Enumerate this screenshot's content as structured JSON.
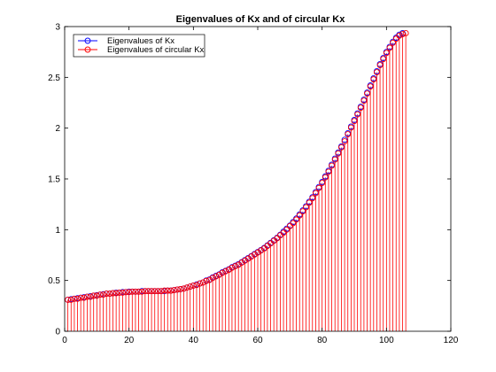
{
  "chart_data": {
    "type": "stem",
    "title": "Eigenvalues of Kx and of circular Kx",
    "xlabel": "",
    "ylabel": "",
    "xlim": [
      0,
      120
    ],
    "ylim": [
      0,
      3
    ],
    "xticks": [
      0,
      20,
      40,
      60,
      80,
      100,
      120
    ],
    "yticks": [
      0,
      0.5,
      1,
      1.5,
      2,
      2.5,
      3
    ],
    "xtick_labels": [
      "0",
      "20",
      "40",
      "60",
      "80",
      "100",
      "120"
    ],
    "ytick_labels": [
      "0",
      "0.5",
      "1",
      "1.5",
      "2",
      "2.5",
      "3"
    ],
    "grid": false,
    "legend_position": "top-left",
    "series": [
      {
        "name": "Eigenvalues of Kx",
        "color": "#0000ff",
        "marker": "circle",
        "stems": false,
        "x": [
          1,
          2,
          3,
          4,
          5,
          6,
          7,
          8,
          9,
          10,
          11,
          12,
          13,
          14,
          15,
          16,
          17,
          18,
          19,
          20,
          21,
          22,
          23,
          24,
          25,
          26,
          27,
          28,
          29,
          30,
          31,
          32,
          33,
          34,
          35,
          36,
          37,
          38,
          39,
          40,
          41,
          42,
          43,
          44,
          45,
          46,
          47,
          48,
          49,
          50,
          51,
          52,
          53,
          54,
          55,
          56,
          57,
          58,
          59,
          60,
          61,
          62,
          63,
          64,
          65,
          66,
          67,
          68,
          69,
          70,
          71,
          72,
          73,
          74,
          75,
          76,
          77,
          78,
          79,
          80,
          81,
          82,
          83,
          84,
          85,
          86,
          87,
          88,
          89,
          90,
          91,
          92,
          93,
          94,
          95,
          96,
          97,
          98,
          99,
          100,
          101,
          102,
          103,
          104,
          105
        ],
        "values": [
          0.31,
          0.315,
          0.32,
          0.325,
          0.33,
          0.335,
          0.34,
          0.345,
          0.35,
          0.355,
          0.36,
          0.365,
          0.37,
          0.37,
          0.375,
          0.38,
          0.38,
          0.385,
          0.385,
          0.39,
          0.39,
          0.39,
          0.39,
          0.395,
          0.395,
          0.395,
          0.395,
          0.395,
          0.395,
          0.395,
          0.395,
          0.4,
          0.4,
          0.405,
          0.41,
          0.415,
          0.42,
          0.43,
          0.44,
          0.45,
          0.46,
          0.47,
          0.48,
          0.5,
          0.51,
          0.53,
          0.545,
          0.56,
          0.58,
          0.595,
          0.61,
          0.63,
          0.645,
          0.66,
          0.68,
          0.7,
          0.72,
          0.74,
          0.76,
          0.78,
          0.8,
          0.82,
          0.845,
          0.87,
          0.895,
          0.92,
          0.95,
          0.98,
          1.01,
          1.04,
          1.075,
          1.11,
          1.15,
          1.19,
          1.23,
          1.275,
          1.32,
          1.37,
          1.42,
          1.47,
          1.525,
          1.58,
          1.64,
          1.7,
          1.76,
          1.82,
          1.885,
          1.95,
          2.015,
          2.08,
          2.145,
          2.21,
          2.28,
          2.35,
          2.42,
          2.49,
          2.56,
          2.63,
          2.69,
          2.75,
          2.8,
          2.85,
          2.89,
          2.92,
          2.935
        ]
      },
      {
        "name": "Eigenvalues of circular Kx",
        "color": "#ff0000",
        "marker": "circle",
        "stems": true,
        "x": [
          1,
          2,
          3,
          4,
          5,
          6,
          7,
          8,
          9,
          10,
          11,
          12,
          13,
          14,
          15,
          16,
          17,
          18,
          19,
          20,
          21,
          22,
          23,
          24,
          25,
          26,
          27,
          28,
          29,
          30,
          31,
          32,
          33,
          34,
          35,
          36,
          37,
          38,
          39,
          40,
          41,
          42,
          43,
          44,
          45,
          46,
          47,
          48,
          49,
          50,
          51,
          52,
          53,
          54,
          55,
          56,
          57,
          58,
          59,
          60,
          61,
          62,
          63,
          64,
          65,
          66,
          67,
          68,
          69,
          70,
          71,
          72,
          73,
          74,
          75,
          76,
          77,
          78,
          79,
          80,
          81,
          82,
          83,
          84,
          85,
          86,
          87,
          88,
          89,
          90,
          91,
          92,
          93,
          94,
          95,
          96,
          97,
          98,
          99,
          100,
          101,
          102,
          103,
          104,
          105,
          106
        ],
        "values": [
          0.31,
          0.31,
          0.32,
          0.32,
          0.33,
          0.33,
          0.34,
          0.34,
          0.35,
          0.35,
          0.36,
          0.36,
          0.37,
          0.37,
          0.375,
          0.375,
          0.38,
          0.38,
          0.385,
          0.385,
          0.39,
          0.39,
          0.39,
          0.39,
          0.395,
          0.395,
          0.395,
          0.395,
          0.395,
          0.395,
          0.4,
          0.4,
          0.4,
          0.405,
          0.41,
          0.415,
          0.42,
          0.43,
          0.44,
          0.45,
          0.455,
          0.47,
          0.48,
          0.495,
          0.505,
          0.525,
          0.54,
          0.555,
          0.575,
          0.59,
          0.605,
          0.625,
          0.64,
          0.655,
          0.675,
          0.695,
          0.715,
          0.735,
          0.755,
          0.775,
          0.795,
          0.815,
          0.84,
          0.865,
          0.89,
          0.915,
          0.945,
          0.97,
          1.0,
          1.035,
          1.065,
          1.1,
          1.14,
          1.18,
          1.22,
          1.265,
          1.31,
          1.36,
          1.41,
          1.46,
          1.515,
          1.57,
          1.63,
          1.69,
          1.75,
          1.81,
          1.87,
          1.94,
          2.005,
          2.07,
          2.135,
          2.2,
          2.27,
          2.34,
          2.41,
          2.48,
          2.55,
          2.62,
          2.68,
          2.74,
          2.79,
          2.84,
          2.88,
          2.91,
          2.925,
          2.935
        ]
      }
    ]
  }
}
